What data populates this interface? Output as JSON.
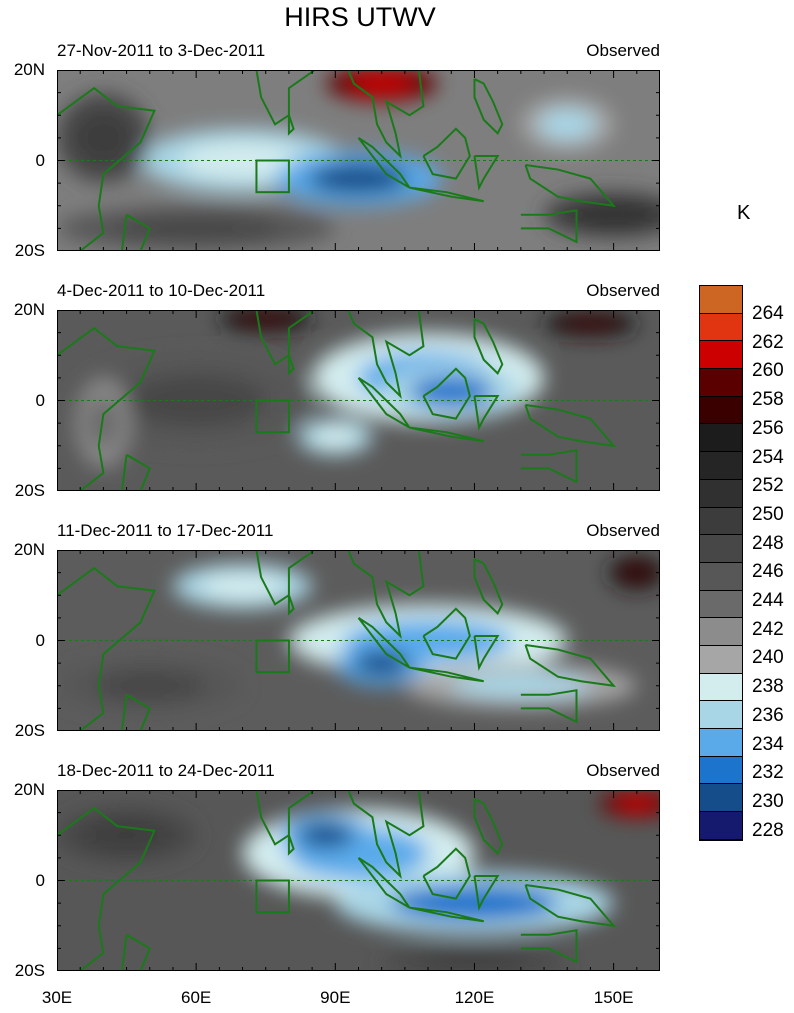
{
  "title": "HIRS UTWV",
  "panels": [
    {
      "period": "27-Nov-2011 to 3-Dec-2011",
      "label": "Observed"
    },
    {
      "period": "4-Dec-2011 to 10-Dec-2011",
      "label": "Observed"
    },
    {
      "period": "11-Dec-2011 to 17-Dec-2011",
      "label": "Observed"
    },
    {
      "period": "18-Dec-2011 to 24-Dec-2011",
      "label": "Observed"
    }
  ],
  "axes": {
    "y_labels": [
      "20N",
      "0",
      "20S"
    ],
    "x_labels": [
      "30E",
      "60E",
      "90E",
      "120E",
      "150E"
    ]
  },
  "colorbar": {
    "units": "K",
    "labels": [
      "264",
      "262",
      "260",
      "258",
      "256",
      "254",
      "252",
      "250",
      "248",
      "246",
      "244",
      "242",
      "240",
      "238",
      "236",
      "234",
      "232",
      "230",
      "228"
    ],
    "colors": [
      "#cc6622",
      "#e03510",
      "#cc0000",
      "#5a0000",
      "#3a0000",
      "#1c1c1c",
      "#252525",
      "#303030",
      "#3c3c3c",
      "#474747",
      "#575757",
      "#6a6a6a",
      "#8c8c8c",
      "#a6a6a6",
      "#d3ecee",
      "#a9d6e6",
      "#5aaaea",
      "#1c74cc",
      "#144d8a",
      "#161a6e"
    ]
  },
  "chart_data": {
    "type": "heatmap",
    "lon_range": [
      30,
      160
    ],
    "lat_range": [
      -20,
      20
    ],
    "features": [
      [
        [
          100,
          17,
          12,
          4,
          262
        ],
        [
          70,
          0,
          22,
          7,
          238
        ],
        [
          95,
          -4,
          18,
          6,
          230
        ],
        [
          140,
          8,
          10,
          6,
          236
        ],
        [
          60,
          -15,
          30,
          5,
          248
        ],
        [
          150,
          -12,
          15,
          5,
          252
        ],
        [
          40,
          5,
          10,
          10,
          250
        ]
      ],
      [
        [
          110,
          5,
          25,
          10,
          234
        ],
        [
          115,
          2,
          15,
          6,
          232
        ],
        [
          90,
          -8,
          8,
          4,
          238
        ],
        [
          60,
          0,
          25,
          10,
          248
        ],
        [
          145,
          17,
          10,
          3,
          258
        ],
        [
          75,
          18,
          10,
          3,
          258
        ],
        [
          40,
          -5,
          6,
          10,
          244
        ]
      ],
      [
        [
          110,
          0,
          30,
          8,
          234
        ],
        [
          100,
          -5,
          10,
          5,
          230
        ],
        [
          70,
          12,
          15,
          5,
          238
        ],
        [
          155,
          15,
          6,
          4,
          258
        ],
        [
          50,
          -10,
          20,
          6,
          248
        ],
        [
          130,
          -10,
          25,
          5,
          236
        ]
      ],
      [
        [
          95,
          6,
          25,
          10,
          234
        ],
        [
          88,
          10,
          10,
          5,
          230
        ],
        [
          120,
          -5,
          30,
          7,
          232
        ],
        [
          155,
          17,
          8,
          3,
          262
        ],
        [
          45,
          10,
          15,
          6,
          250
        ],
        [
          120,
          -18,
          20,
          3,
          250
        ]
      ]
    ]
  }
}
